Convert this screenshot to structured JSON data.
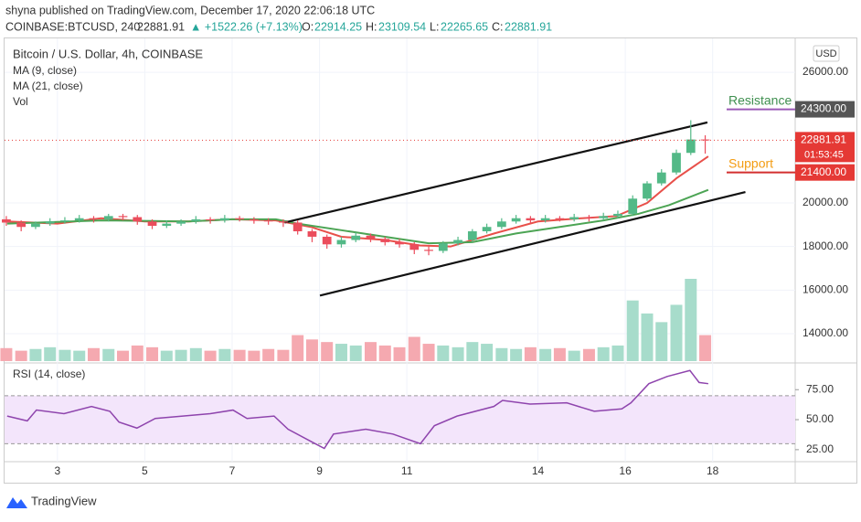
{
  "header": {
    "publisher": "shyna published on TradingView.com, December 17, 2020 22:06:18 UTC",
    "symbol": "COINBASE:BTCUSD, 240",
    "last": "22881.91",
    "change": "▲ +1522.26 (+7.13%)",
    "o_label": "O:",
    "o": "22914.25",
    "h_label": "H:",
    "h": "23109.54",
    "l_label": "L:",
    "l": "22265.65",
    "c_label": "C:",
    "c": "22881.91"
  },
  "footer": "TradingView",
  "chart_data": {
    "type": "candlestick",
    "title": "Bitcoin / U.S. Dollar, 4h, COINBASE",
    "legend": [
      "MA (9, close)",
      "MA (21, close)",
      "Vol"
    ],
    "currency": "USD",
    "up_color": "#53b987",
    "down_color": "#eb4d5c",
    "x": [
      1.83,
      2.17,
      2.5,
      2.83,
      3.17,
      3.5,
      3.83,
      4.17,
      4.5,
      4.83,
      5.17,
      5.5,
      5.83,
      6.17,
      6.5,
      6.83,
      7.17,
      7.5,
      7.83,
      8.17,
      8.5,
      8.83,
      9.17,
      9.5,
      9.83,
      10.17,
      10.5,
      10.83,
      11.17,
      11.5,
      11.83,
      12.17,
      12.5,
      12.83,
      13.17,
      13.5,
      13.83,
      14.17,
      14.5,
      14.83,
      15.17,
      15.5,
      15.83,
      16.17,
      16.5,
      16.83,
      17.17,
      17.5,
      17.83
    ],
    "open": [
      19250,
      19100,
      18900,
      19050,
      19150,
      19200,
      19300,
      19250,
      19400,
      19350,
      19150,
      18950,
      19050,
      19150,
      19250,
      19200,
      19300,
      19250,
      19200,
      19150,
      19100,
      18700,
      18450,
      18100,
      18300,
      18500,
      18350,
      18200,
      18100,
      17850,
      17800,
      18150,
      18300,
      18700,
      18900,
      19150,
      19300,
      19200,
      19300,
      19250,
      19350,
      19300,
      19400,
      19500,
      20200,
      20900,
      21400,
      22300,
      22914.25
    ],
    "high": [
      19400,
      19200,
      19150,
      19300,
      19350,
      19450,
      19400,
      19500,
      19500,
      19450,
      19250,
      19200,
      19250,
      19400,
      19350,
      19450,
      19400,
      19350,
      19300,
      19250,
      19200,
      18800,
      18550,
      18450,
      18650,
      18600,
      18450,
      18350,
      18200,
      18000,
      18250,
      18450,
      18800,
      19050,
      19300,
      19450,
      19400,
      19450,
      19400,
      19500,
      19450,
      19550,
      19650,
      20350,
      21000,
      21550,
      22450,
      23800,
      23109.54
    ],
    "low": [
      18950,
      18700,
      18800,
      18950,
      19050,
      19100,
      19100,
      19150,
      19200,
      19000,
      18800,
      18850,
      18950,
      19050,
      19050,
      19100,
      19150,
      19050,
      19000,
      18900,
      18550,
      18200,
      17900,
      17950,
      18200,
      18200,
      18050,
      17950,
      17650,
      17600,
      17700,
      18050,
      18200,
      18600,
      18800,
      19050,
      19050,
      19100,
      19150,
      19150,
      19150,
      19200,
      19300,
      19400,
      20100,
      20800,
      21300,
      22200,
      22265.65
    ],
    "close": [
      19100,
      18900,
      19050,
      19150,
      19200,
      19300,
      19250,
      19400,
      19350,
      19150,
      18950,
      19050,
      19150,
      19250,
      19200,
      19300,
      19250,
      19200,
      19150,
      19100,
      18700,
      18450,
      18100,
      18300,
      18500,
      18350,
      18200,
      18100,
      17850,
      17800,
      18150,
      18300,
      18700,
      18900,
      19150,
      19300,
      19200,
      19300,
      19250,
      19350,
      19300,
      19400,
      19500,
      20200,
      20900,
      21400,
      22300,
      22914.25,
      22881.91
    ],
    "volume": [
      15,
      12,
      14,
      16,
      13,
      12,
      15,
      14,
      12,
      18,
      16,
      12,
      13,
      15,
      12,
      14,
      13,
      12,
      14,
      13,
      30,
      25,
      22,
      20,
      18,
      22,
      18,
      16,
      28,
      20,
      18,
      16,
      22,
      20,
      15,
      14,
      16,
      14,
      15,
      12,
      14,
      16,
      18,
      70,
      55,
      45,
      65,
      95,
      30
    ],
    "series": [
      {
        "name": "MA (9, close)",
        "color": "#e8504a",
        "x": [
          1.85,
          3,
          4,
          5,
          6,
          7,
          8,
          8.8,
          9.5,
          10.5,
          11.3,
          12,
          13,
          14,
          15,
          15.8,
          16.5,
          17.17,
          17.9
        ],
        "values": [
          19150,
          19050,
          19300,
          19150,
          19150,
          19250,
          19200,
          18900,
          18450,
          18300,
          18050,
          18000,
          18600,
          19150,
          19300,
          19400,
          20000,
          21130,
          22140
        ]
      },
      {
        "name": "MA (21, close)",
        "color": "#4ca454",
        "x": [
          1.85,
          4,
          6,
          7,
          8,
          8.5,
          9.5,
          10.5,
          11.5,
          12.5,
          13.5,
          14.5,
          15.5,
          16.3,
          17,
          17.9
        ],
        "values": [
          19050,
          19200,
          19150,
          19250,
          19250,
          19050,
          18750,
          18450,
          18150,
          18200,
          18600,
          18900,
          19200,
          19500,
          19900,
          20600
        ]
      }
    ],
    "xlim": [
      1.79,
      19.89
    ],
    "xticks": [
      3,
      5,
      7,
      9,
      11,
      14,
      16,
      18
    ],
    "ylim": [
      12740,
      27430
    ],
    "yticks": [
      {
        "value": 14000,
        "label": "14000.00"
      },
      {
        "value": 16000,
        "label": "16000.00"
      },
      {
        "value": 18000,
        "label": "18000.00"
      },
      {
        "value": 20000,
        "label": "20000.00"
      },
      {
        "value": 26000,
        "label": "26000.00"
      }
    ],
    "last_price": {
      "value": 22881.91,
      "label": "22881.91",
      "countdown": "01:53:45"
    },
    "trendlines": [
      {
        "x": [
          8.2,
          17.88
        ],
        "values": [
          19100,
          23700
        ]
      },
      {
        "x": [
          9.01,
          18.75
        ],
        "values": [
          15750,
          20500
        ]
      }
    ],
    "levels": [
      {
        "text": "Resistance",
        "value": 24300,
        "label": "24300.00",
        "color": "#3f8f4f",
        "line_color": "#9b59b6",
        "tag_color": "#555"
      },
      {
        "text": "Support",
        "value": 21400,
        "label": "21400.00",
        "color": "#f39c12",
        "line_color": "#d32f2f",
        "tag_color": "#e53935"
      }
    ],
    "rsi": {
      "name": "RSI (14, close)",
      "color": "#8e44ad",
      "ylim": [
        15,
        95
      ],
      "yticks": [
        {
          "value": 25,
          "label": "25.00"
        },
        {
          "value": 50,
          "label": "50.00"
        },
        {
          "value": 75,
          "label": "75.00"
        }
      ],
      "band": [
        30,
        70
      ],
      "x": [
        1.85,
        2.31,
        2.52,
        3.15,
        3.78,
        4.2,
        4.41,
        4.82,
        5.24,
        5.87,
        6.5,
        7.02,
        7.34,
        7.96,
        8.28,
        8.9,
        9.11,
        9.32,
        10.06,
        10.68,
        11.31,
        11.63,
        12.15,
        12.99,
        13.19,
        13.82,
        14.66,
        15.29,
        15.92,
        16.13,
        16.54,
        16.96,
        17.48,
        17.69,
        17.9
      ],
      "values": [
        53,
        49,
        58,
        55,
        61,
        57,
        48,
        43,
        51,
        53,
        55,
        58,
        51,
        53,
        42,
        30,
        26,
        38,
        42,
        38,
        30,
        45,
        53,
        61,
        66,
        63,
        64,
        57,
        59,
        64,
        80,
        86,
        91,
        81,
        80
      ]
    }
  }
}
